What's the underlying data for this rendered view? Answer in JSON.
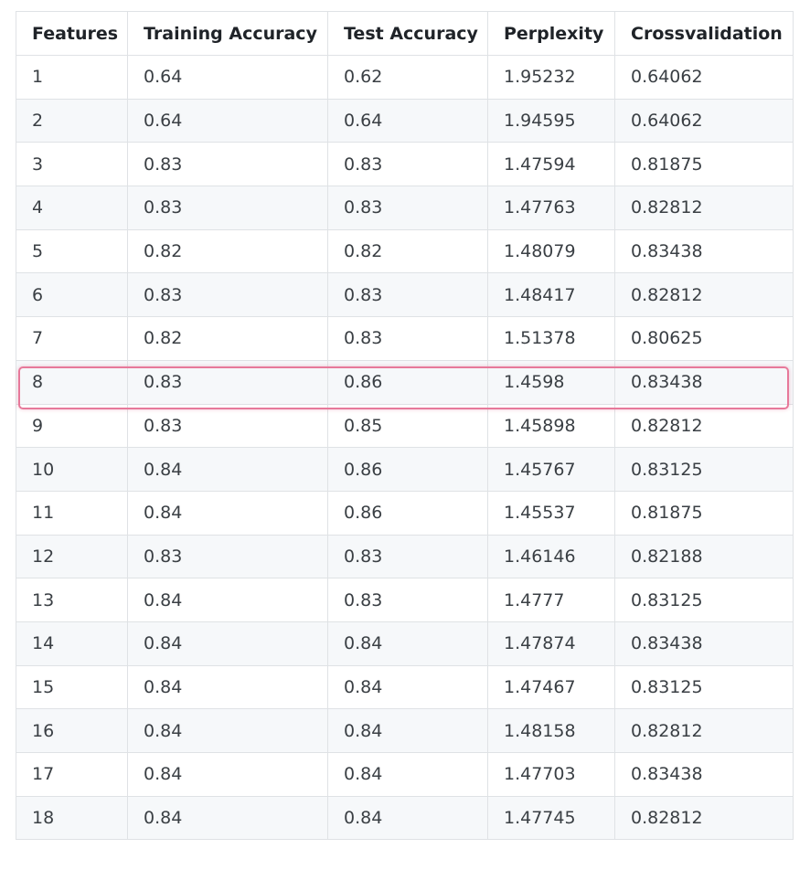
{
  "table": {
    "headers": [
      "Features",
      "Training Accuracy",
      "Test Accuracy",
      "Perplexity",
      "Crossvalidation"
    ],
    "rows": [
      [
        "1",
        "0.64",
        "0.62",
        "1.95232",
        "0.64062"
      ],
      [
        "2",
        "0.64",
        "0.64",
        "1.94595",
        "0.64062"
      ],
      [
        "3",
        "0.83",
        "0.83",
        "1.47594",
        "0.81875"
      ],
      [
        "4",
        "0.83",
        "0.83",
        "1.47763",
        "0.82812"
      ],
      [
        "5",
        "0.82",
        "0.82",
        "1.48079",
        "0.83438"
      ],
      [
        "6",
        "0.83",
        "0.83",
        "1.48417",
        "0.82812"
      ],
      [
        "7",
        "0.82",
        "0.83",
        "1.51378",
        "0.80625"
      ],
      [
        "8",
        "0.83",
        "0.86",
        "1.4598",
        "0.83438"
      ],
      [
        "9",
        "0.83",
        "0.85",
        "1.45898",
        "0.82812"
      ],
      [
        "10",
        "0.84",
        "0.86",
        "1.45767",
        "0.83125"
      ],
      [
        "11",
        "0.84",
        "0.86",
        "1.45537",
        "0.81875"
      ],
      [
        "12",
        "0.83",
        "0.83",
        "1.46146",
        "0.82188"
      ],
      [
        "13",
        "0.84",
        "0.83",
        "1.4777",
        "0.83125"
      ],
      [
        "14",
        "0.84",
        "0.84",
        "1.47874",
        "0.83438"
      ],
      [
        "15",
        "0.84",
        "0.84",
        "1.47467",
        "0.83125"
      ],
      [
        "16",
        "0.84",
        "0.84",
        "1.48158",
        "0.82812"
      ],
      [
        "17",
        "0.84",
        "0.84",
        "1.47703",
        "0.83438"
      ],
      [
        "18",
        "0.84",
        "0.84",
        "1.47745",
        "0.82812"
      ]
    ],
    "highlighted_row_features": "8"
  },
  "colors": {
    "highlight_border": "#e7799a",
    "stripe": "#f6f8fa",
    "grid": "#dfe2e5"
  }
}
